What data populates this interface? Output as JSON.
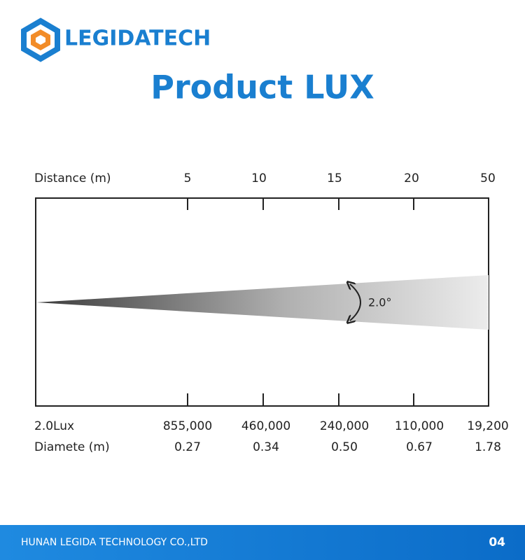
{
  "header": {
    "brand": "LEGIDATECH",
    "title": "Product LUX"
  },
  "diagram": {
    "distance_label": "Distance (m)",
    "distances": [
      "5",
      "10",
      "15",
      "20",
      "50"
    ],
    "angle": "2.0°",
    "lux_label": "2.0Lux",
    "lux": [
      "855,000",
      "460,000",
      "240,000",
      "110,000",
      "19,200"
    ],
    "diameter_label": "Diamete (m)",
    "diameters": [
      "0.27",
      "0.34",
      "0.50",
      "0.67",
      "1.78"
    ]
  },
  "footer": {
    "company": "HUNAN LEGIDA TECHNOLOGY CO.,LTD",
    "page": "04"
  }
}
